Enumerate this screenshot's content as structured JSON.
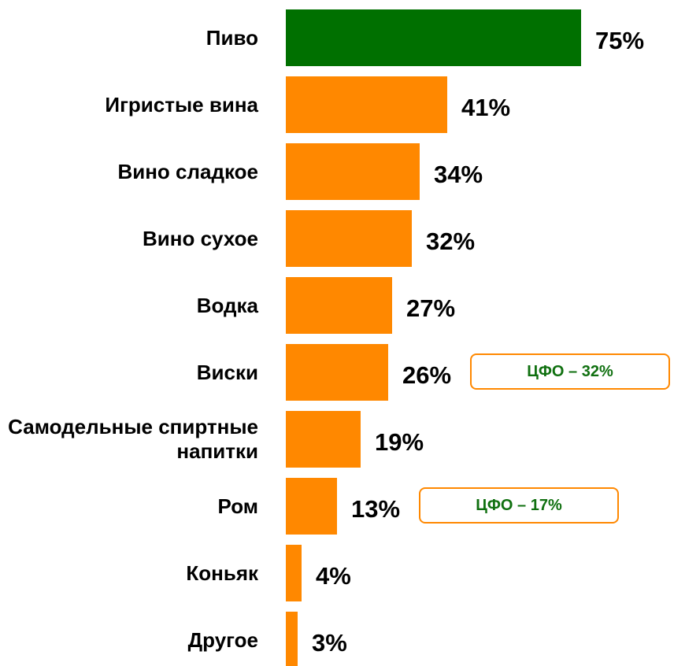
{
  "chart_data": {
    "type": "bar",
    "orientation": "horizontal",
    "categories": [
      "Пиво",
      "Игристые вина",
      "Вино сладкое",
      "Вино сухое",
      "Водка",
      "Виски",
      "Самодельные спиртные напитки",
      "Ром",
      "Коньяк",
      "Другое"
    ],
    "values": [
      75,
      41,
      34,
      32,
      27,
      26,
      19,
      13,
      4,
      3
    ],
    "value_labels": [
      "75%",
      "41%",
      "34%",
      "32%",
      "27%",
      "26%",
      "19%",
      "13%",
      "4%",
      "3%"
    ],
    "colors": [
      "#007000",
      "#ff8800",
      "#ff8800",
      "#ff8800",
      "#ff8800",
      "#ff8800",
      "#ff8800",
      "#ff8800",
      "#ff8800",
      "#ff8800"
    ],
    "annotations": [
      {
        "text": "ЦФО – 32%",
        "category": "Виски"
      },
      {
        "text": "ЦФО – 17%",
        "category": "Ром"
      }
    ]
  }
}
